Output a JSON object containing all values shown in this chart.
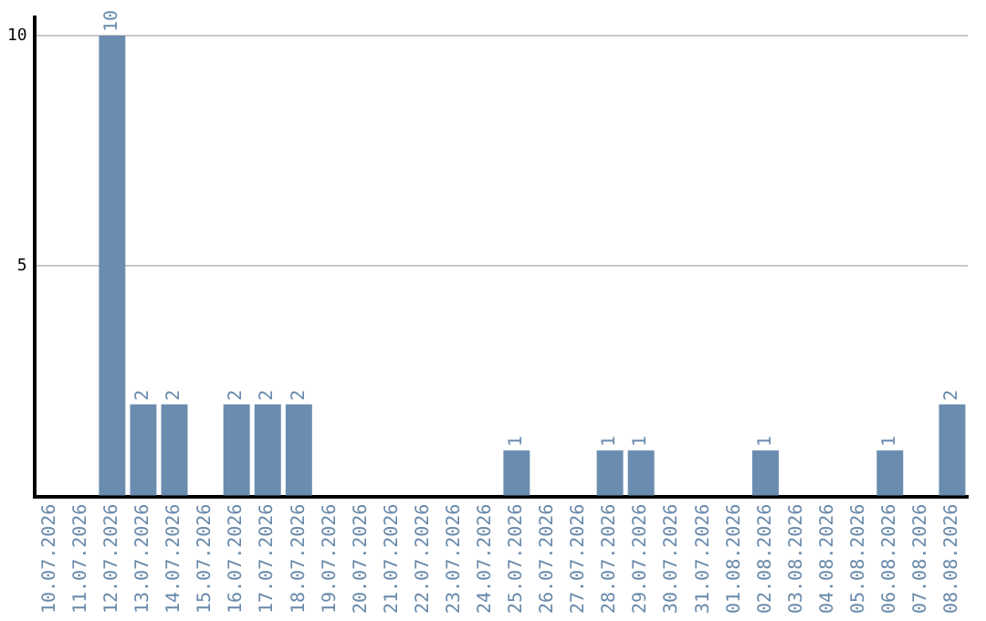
{
  "chart_data": {
    "type": "bar",
    "categories": [
      "10.07.2026",
      "11.07.2026",
      "12.07.2026",
      "13.07.2026",
      "14.07.2026",
      "15.07.2026",
      "16.07.2026",
      "17.07.2026",
      "18.07.2026",
      "19.07.2026",
      "20.07.2026",
      "21.07.2026",
      "22.07.2026",
      "23.07.2026",
      "24.07.2026",
      "25.07.2026",
      "26.07.2026",
      "27.07.2026",
      "28.07.2026",
      "29.07.2026",
      "30.07.2026",
      "31.07.2026",
      "01.08.2026",
      "02.08.2026",
      "03.08.2026",
      "04.08.2026",
      "05.08.2026",
      "06.08.2026",
      "07.08.2026",
      "08.08.2026"
    ],
    "values": [
      0,
      0,
      10,
      2,
      2,
      0,
      2,
      2,
      2,
      0,
      0,
      0,
      0,
      0,
      0,
      1,
      0,
      0,
      1,
      1,
      0,
      0,
      0,
      1,
      0,
      0,
      0,
      1,
      0,
      2
    ],
    "value_labels": [
      null,
      null,
      "10",
      "2",
      "2",
      null,
      "2",
      "2",
      "2",
      null,
      null,
      null,
      null,
      null,
      null,
      "1",
      null,
      null,
      "1",
      "1",
      null,
      null,
      null,
      "1",
      null,
      null,
      null,
      "1",
      null,
      "2"
    ],
    "color": "#6a8caf",
    "ylim": [
      0,
      10.4
    ],
    "yticks": [
      {
        "value": 0,
        "label": null
      },
      5,
      10
    ],
    "grid": "y"
  }
}
